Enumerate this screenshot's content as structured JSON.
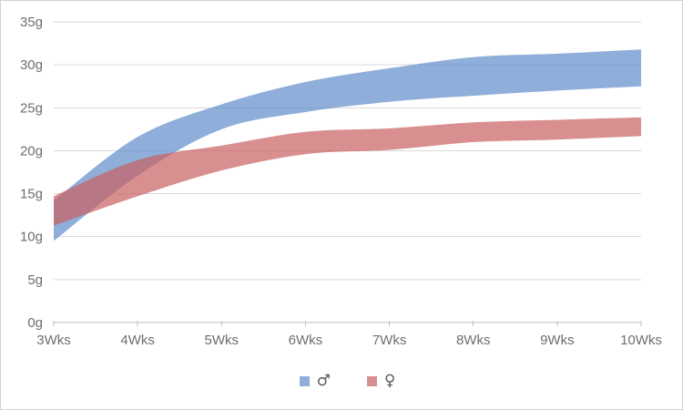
{
  "chart_data": {
    "type": "area",
    "title": "",
    "xlabel": "",
    "ylabel": "",
    "unit": "g",
    "categories": [
      "3Wks",
      "4Wks",
      "5Wks",
      "6Wks",
      "7Wks",
      "8Wks",
      "9Wks",
      "10Wks"
    ],
    "x_weeks": [
      3,
      4,
      5,
      6,
      7,
      8,
      9,
      10
    ],
    "y_labels": [
      "0g",
      "5g",
      "10g",
      "15g",
      "20g",
      "25g",
      "30g",
      "35g"
    ],
    "ylim": [
      0,
      35
    ],
    "ytick_step": 5,
    "grid": true,
    "legend_position": "bottom",
    "series": [
      {
        "name": "♂",
        "color": "#5F8BCA",
        "fill_opacity": 0.7,
        "color_on_white": "#8FAEDA",
        "low": [
          9.5,
          17.1,
          22.5,
          24.5,
          25.7,
          26.4,
          27.0,
          27.5
        ],
        "high": [
          14.2,
          21.6,
          25.4,
          28.0,
          29.6,
          30.9,
          31.3,
          31.8
        ]
      },
      {
        "name": "♀",
        "color": "#C95F60",
        "fill_opacity": 0.7,
        "color_on_white": "#D98F90",
        "low": [
          11.3,
          14.7,
          17.7,
          19.6,
          20.1,
          21.0,
          21.3,
          21.7
        ],
        "high": [
          14.7,
          18.9,
          20.6,
          22.2,
          22.6,
          23.3,
          23.6,
          23.9
        ]
      }
    ],
    "colors": {
      "gridline": "#D9D9D9",
      "axis_line": "#BFBFBF",
      "tick_label": "#6E6E6E",
      "legend_symbol": "#595959",
      "frame_border": "#D3D3D3",
      "background": "#FFFFFF"
    },
    "layout": {
      "plot_left": 58,
      "plot_right": 703,
      "plot_top": 23,
      "plot_bottom": 353
    }
  }
}
